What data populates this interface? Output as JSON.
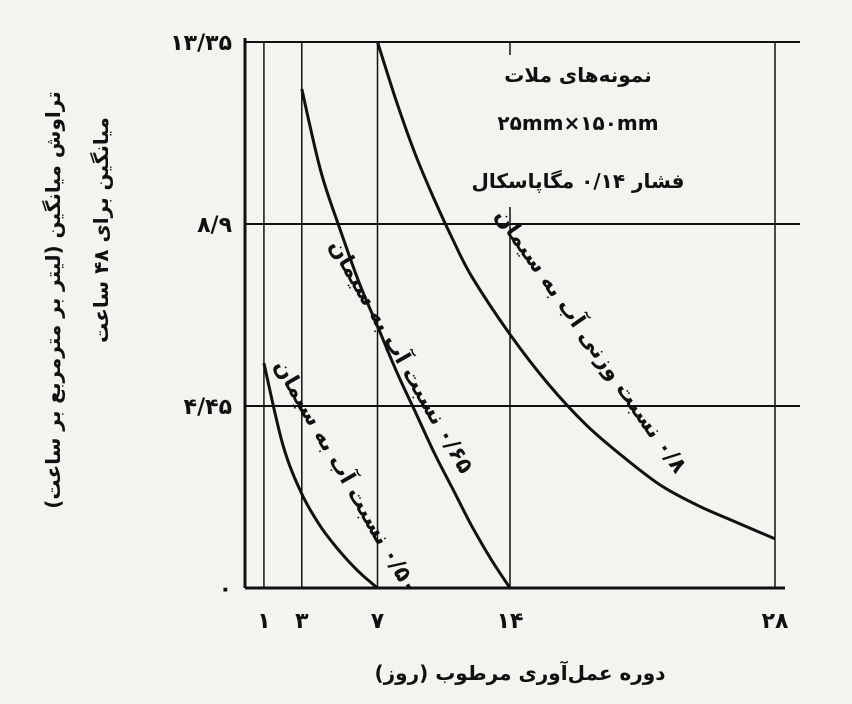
{
  "chart_data": {
    "type": "line",
    "xlabel": "دوره عمل‌آوری مرطوب (روز)",
    "ylabel_line1": "تراوش میانگین (لیتر بر مترمربع بر ساعت)",
    "ylabel_line2": "میانگین برای ۴۸ ساعت",
    "x_ticks": [
      {
        "value": 1,
        "label": "۱"
      },
      {
        "value": 3,
        "label": "۳"
      },
      {
        "value": 7,
        "label": "۷"
      },
      {
        "value": 14,
        "label": "۱۴"
      },
      {
        "value": 28,
        "label": "۲۸"
      }
    ],
    "y_ticks": [
      {
        "value": 0,
        "label": "۰"
      },
      {
        "value": 4.45,
        "label": "۴/۴۵"
      },
      {
        "value": 8.9,
        "label": "۸/۹"
      },
      {
        "value": 13.35,
        "label": "۱۳/۳۵"
      }
    ],
    "xlim": [
      0,
      28
    ],
    "ylim": [
      0,
      13.35
    ],
    "grid": true,
    "annotations": {
      "line1": "نمونه‌های ملات",
      "line2": "۲۵mm×۱۵۰mm",
      "line3": "فشار ۰/۱۴ مگاپاسکال"
    },
    "series": [
      {
        "name": "۰/۵۰ نسبت آب به سیمان",
        "points": [
          [
            1,
            5.5
          ],
          [
            2,
            3.5
          ],
          [
            3,
            2.3
          ],
          [
            4,
            1.5
          ],
          [
            5,
            0.9
          ],
          [
            6,
            0.4
          ],
          [
            7,
            0
          ]
        ]
      },
      {
        "name": "۰/۶۵ نسبت آب به سیمان",
        "points": [
          [
            3,
            12.2
          ],
          [
            4,
            10.2
          ],
          [
            5,
            8.8
          ],
          [
            6,
            7.5
          ],
          [
            7,
            6.4
          ],
          [
            8,
            5.3
          ],
          [
            9,
            4.3
          ],
          [
            10,
            3.3
          ],
          [
            11,
            2.4
          ],
          [
            12,
            1.5
          ],
          [
            13,
            0.7
          ],
          [
            14,
            0
          ]
        ]
      },
      {
        "name": "۰/۸ نسبت وزنی آب به سیمان",
        "points": [
          [
            7,
            13.35
          ],
          [
            8,
            11.9
          ],
          [
            9,
            10.6
          ],
          [
            10,
            9.5
          ],
          [
            11,
            8.5
          ],
          [
            12,
            7.6
          ],
          [
            14,
            6.2
          ],
          [
            16,
            5.0
          ],
          [
            18,
            4.0
          ],
          [
            20,
            3.2
          ],
          [
            22,
            2.5
          ],
          [
            24,
            2.0
          ],
          [
            26,
            1.6
          ],
          [
            28,
            1.2
          ]
        ]
      }
    ]
  }
}
